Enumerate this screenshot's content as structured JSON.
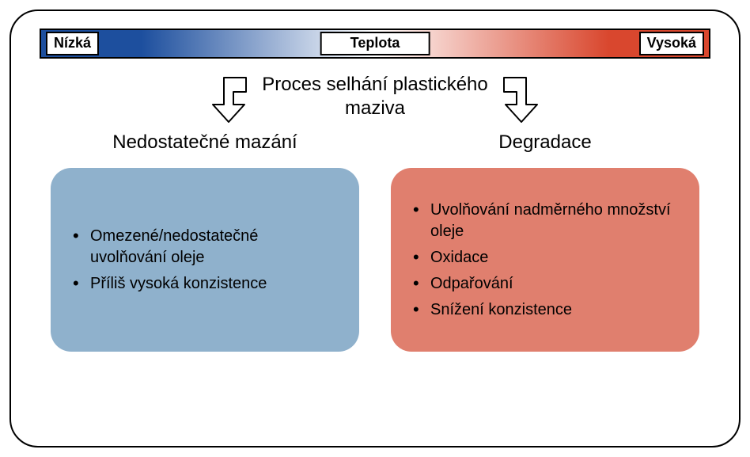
{
  "temperature_bar": {
    "low_label": "Nízká",
    "center_label": "Teplota",
    "high_label": "Vysoká",
    "gradient": {
      "start": "#1d4f9e",
      "mid": "#ffffff",
      "end": "#d9472e"
    },
    "border_color": "#000000",
    "label_bg": "#ffffff",
    "label_fontsize": 18
  },
  "process_title": {
    "line1": "Proces selhání plastického",
    "line2": "maziva",
    "fontsize": 24,
    "color": "#000000"
  },
  "arrows": {
    "stroke": "#000000",
    "fill": "#ffffff",
    "stroke_width": 2
  },
  "columns": {
    "left": {
      "title": "Nedostatečné mazání",
      "panel_color": "#8fb1cc",
      "items": [
        "Omezené/nedostatečné uvolňování oleje",
        "Příliš vysoká konzistence"
      ]
    },
    "right": {
      "title": "Degradace",
      "panel_color": "#e07f6e",
      "items": [
        "Uvolňování nadměrného množství oleje",
        "Oxidace",
        "Odpařování",
        "Snížení konzistence"
      ]
    },
    "title_fontsize": 24,
    "item_fontsize": 20,
    "panel_radius": 26
  },
  "frame": {
    "border_color": "#000000",
    "border_width": 2.5,
    "border_radius": 36,
    "background": "#ffffff"
  }
}
